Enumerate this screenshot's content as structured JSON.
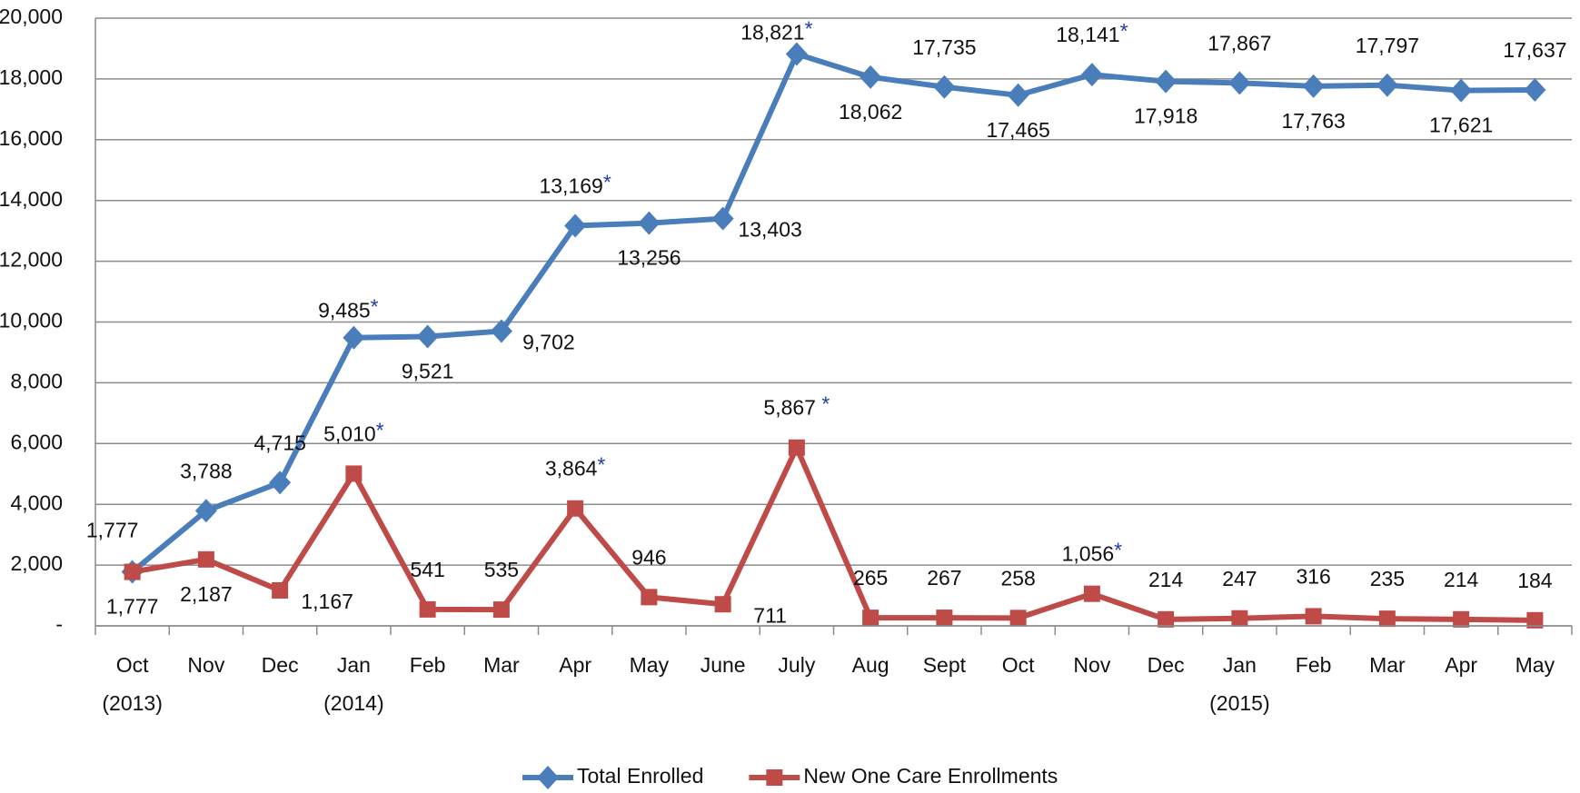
{
  "chart_data": {
    "type": "line",
    "categories": [
      "Oct\n(2013)",
      "Nov",
      "Dec",
      "Jan\n(2014)",
      "Feb",
      "Mar",
      "Apr",
      "May",
      "June",
      "July",
      "Aug",
      "Sept",
      "Oct",
      "Nov",
      "Dec",
      "Jan\n(2015)",
      "Feb",
      "Mar",
      "Apr",
      "May"
    ],
    "series": [
      {
        "name": "Total Enrolled",
        "color": "#4a7ebb",
        "marker": "diamond",
        "values": [
          1777,
          3788,
          4715,
          9485,
          9521,
          9702,
          13169,
          13256,
          13403,
          18821,
          18062,
          17735,
          17465,
          18141,
          17918,
          17867,
          17763,
          17797,
          17621,
          17637
        ],
        "value_labels": [
          "1,777",
          "3,788",
          "4,715",
          "9,485*",
          "9,521",
          "9,702",
          "13,169*",
          "13,256",
          "13,403",
          "18,821*",
          "18,062",
          "17,735",
          "17,465",
          "18,141*",
          "17,918",
          "17,867",
          "17,763",
          "17,797",
          "17,621",
          "17,637"
        ]
      },
      {
        "name": "New One Care Enrollments",
        "color": "#be4b48",
        "marker": "square",
        "values": [
          1777,
          2187,
          1167,
          5010,
          541,
          535,
          3864,
          946,
          711,
          5867,
          265,
          267,
          258,
          1056,
          214,
          247,
          316,
          235,
          214,
          184
        ],
        "value_labels": [
          "1,777",
          "2,187",
          "1,167",
          "5,010*",
          "541",
          "535",
          "3,864*",
          "946",
          "711",
          "5,867 *",
          "265",
          "267",
          "258",
          "1,056*",
          "214",
          "247",
          "316",
          "235",
          "214",
          "184"
        ]
      }
    ],
    "ylim": [
      0,
      20000
    ],
    "yticks": [
      {
        "value": 0,
        "label": "-"
      },
      {
        "value": 2000,
        "label": "2,000"
      },
      {
        "value": 4000,
        "label": "4,000"
      },
      {
        "value": 6000,
        "label": "6,000"
      },
      {
        "value": 8000,
        "label": "8,000"
      },
      {
        "value": 10000,
        "label": "10,000"
      },
      {
        "value": 12000,
        "label": "12,000"
      },
      {
        "value": 14000,
        "label": "14,000"
      },
      {
        "value": 16000,
        "label": "16,000"
      },
      {
        "value": 18000,
        "label": "18,000"
      },
      {
        "value": 20000,
        "label": "20,000"
      }
    ],
    "grid": true,
    "legend": "bottom"
  }
}
